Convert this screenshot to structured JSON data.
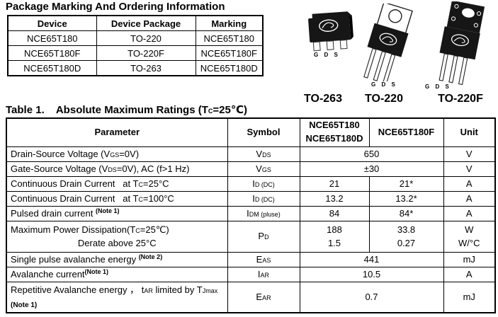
{
  "doc_title": "Package Marking And Ordering Information",
  "ordering_table": {
    "headers": [
      "Device",
      "Device Package",
      "Marking"
    ],
    "rows": [
      [
        "NCE65T180",
        "TO-220",
        "NCE65T180"
      ],
      [
        "NCE65T180F",
        "TO-220F",
        "NCE65T180F"
      ],
      [
        "NCE65T180D",
        "TO-263",
        "NCE65T180D"
      ]
    ]
  },
  "packages": {
    "pin_label": "G D S",
    "items": [
      {
        "name": "TO-263"
      },
      {
        "name": "TO-220"
      },
      {
        "name": "TO-220F"
      }
    ]
  },
  "ratings_table": {
    "title_segments": [
      [
        "Table 1.    Absolute Maximum Ratings (T"
      ],
      [
        "C",
        "sub"
      ],
      [
        "=25℃)"
      ]
    ],
    "headers": {
      "parameter": "Parameter",
      "symbol": "Symbol",
      "device_group_a": [
        "NCE65T180",
        "NCE65T180D"
      ],
      "device_b": "NCE65T180F",
      "unit": "Unit"
    },
    "rows": [
      {
        "param": [
          [
            "Drain-Source Voltage (V"
          ],
          [
            "GS",
            "sub"
          ],
          [
            "=0V)"
          ]
        ],
        "symbol": [
          [
            "V"
          ],
          [
            "DS",
            "sub"
          ]
        ],
        "value_span": "650",
        "unit": [
          "V"
        ]
      },
      {
        "param": [
          [
            "Gate-Source Voltage (V"
          ],
          [
            "DS",
            "sub"
          ],
          [
            "=0V), AC (f>1 Hz)"
          ]
        ],
        "symbol": [
          [
            "V"
          ],
          [
            "GS",
            "sub"
          ]
        ],
        "value_span": "±30",
        "unit": [
          "V"
        ]
      },
      {
        "param": [
          [
            "Continuous Drain Current   at T"
          ],
          [
            "C",
            "sub"
          ],
          [
            "=25°C"
          ]
        ],
        "symbol": [
          [
            "I"
          ],
          [
            "D (DC)",
            "sub"
          ]
        ],
        "value_a": [
          "21"
        ],
        "value_b": [
          "21*"
        ],
        "unit": [
          "A"
        ]
      },
      {
        "param": [
          [
            "Continuous Drain Current   at T"
          ],
          [
            "C",
            "sub"
          ],
          [
            "=100°C"
          ]
        ],
        "symbol": [
          [
            "I"
          ],
          [
            "D (DC)",
            "sub"
          ]
        ],
        "value_a": [
          "13.2"
        ],
        "value_b": [
          "13.2*"
        ],
        "unit": [
          "A"
        ]
      },
      {
        "param": [
          [
            "Pulsed drain current "
          ],
          [
            "(Note 1)",
            "note"
          ]
        ],
        "symbol": [
          [
            "I"
          ],
          [
            "DM (pluse)",
            "sub"
          ]
        ],
        "value_a": [
          "84"
        ],
        "value_b": [
          "84*"
        ],
        "unit": [
          "A"
        ]
      },
      {
        "param": [
          [
            "Maximum Power Dissipation(T"
          ],
          [
            "C",
            "sub"
          ],
          [
            "=25℃)"
          ]
        ],
        "param2": [
          [
            "Derate above 25°C"
          ]
        ],
        "param2_align": "center",
        "symbol": [
          [
            "P"
          ],
          [
            "D",
            "sub"
          ]
        ],
        "value_a": [
          "188",
          "1.5"
        ],
        "value_b": [
          "33.8",
          "0.27"
        ],
        "unit": [
          "W",
          "W/°C"
        ]
      },
      {
        "param": [
          [
            "Single pulse avalanche energy "
          ],
          [
            "(Note 2)",
            "note"
          ]
        ],
        "symbol": [
          [
            "E"
          ],
          [
            "AS",
            "sub"
          ]
        ],
        "value_span": "441",
        "unit": [
          "mJ"
        ]
      },
      {
        "param": [
          [
            "Avalanche current"
          ],
          [
            "(Note 1)",
            "note"
          ]
        ],
        "symbol": [
          [
            "I"
          ],
          [
            "AR",
            "sub"
          ]
        ],
        "value_span": "10.5",
        "unit": [
          "A"
        ]
      },
      {
        "param": [
          [
            "Repetitive Avalanche energy ， t"
          ],
          [
            "AR",
            "sub"
          ],
          [
            " limited by T"
          ],
          [
            "Jmax",
            "sub"
          ]
        ],
        "param2": [
          [
            "(Note 1)",
            "noteline"
          ]
        ],
        "param2_align": "left",
        "symbol": [
          [
            "E"
          ],
          [
            "AR",
            "sub"
          ]
        ],
        "value_span": "0.7",
        "unit": [
          "mJ"
        ]
      }
    ]
  }
}
